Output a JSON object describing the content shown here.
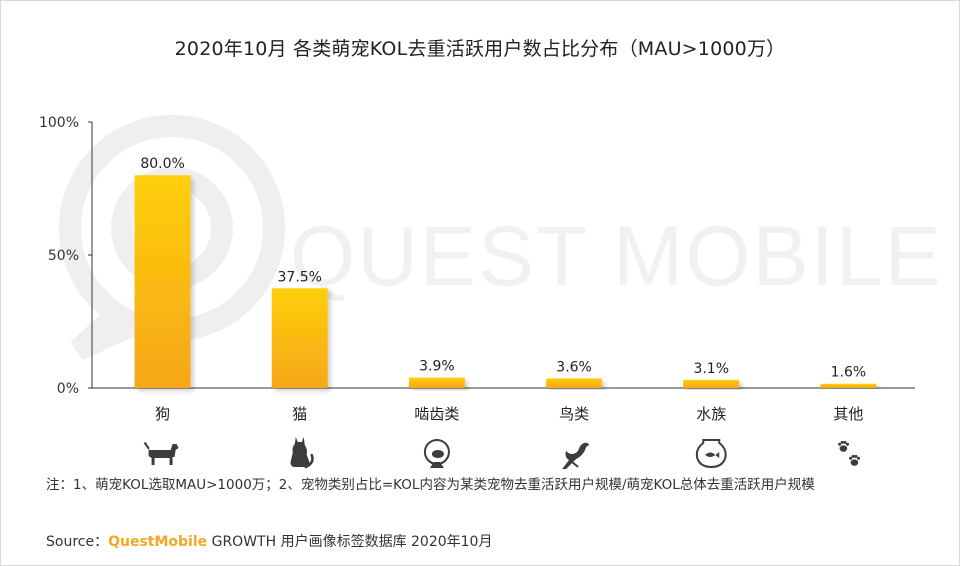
{
  "title": "2020年10月 各类萌宠KOL去重活跃用户数占比分布（MAU>1000万）",
  "watermark": "QUEST MOBILE",
  "colors": {
    "bar_top": "#FFCF0A",
    "bar_bottom": "#F6A619",
    "axis": "#333333",
    "watermark": "#f2f2f2"
  },
  "chart_data": {
    "type": "bar",
    "title": "2020年10月 各类萌宠KOL去重活跃用户数占比分布（MAU>1000万）",
    "categories": [
      "狗",
      "猫",
      "啮齿类",
      "鸟类",
      "水族",
      "其他"
    ],
    "values": [
      80.0,
      37.5,
      3.9,
      3.6,
      3.1,
      1.6
    ],
    "value_labels": [
      "80.0%",
      "37.5%",
      "3.9%",
      "3.6%",
      "3.1%",
      "1.6%"
    ],
    "y_ticks": [
      "0%",
      "50%",
      "100%"
    ],
    "ylim": [
      0,
      100
    ],
    "xlabel": "",
    "ylabel": "",
    "category_icons": [
      "dog-icon",
      "cat-icon",
      "hamster-wheel-icon",
      "bird-icon",
      "fishbowl-icon",
      "paw-prints-icon"
    ]
  },
  "footnote": "注：1、萌宠KOL选取MAU>1000万；2、宠物类别占比=KOL内容为某类宠物去重活跃用户规模/萌宠KOL总体去重活跃用户规模",
  "source": {
    "prefix": "Source：",
    "brand": "QuestMobile",
    "suffix": " GROWTH 用户画像标签数据库 2020年10月"
  }
}
